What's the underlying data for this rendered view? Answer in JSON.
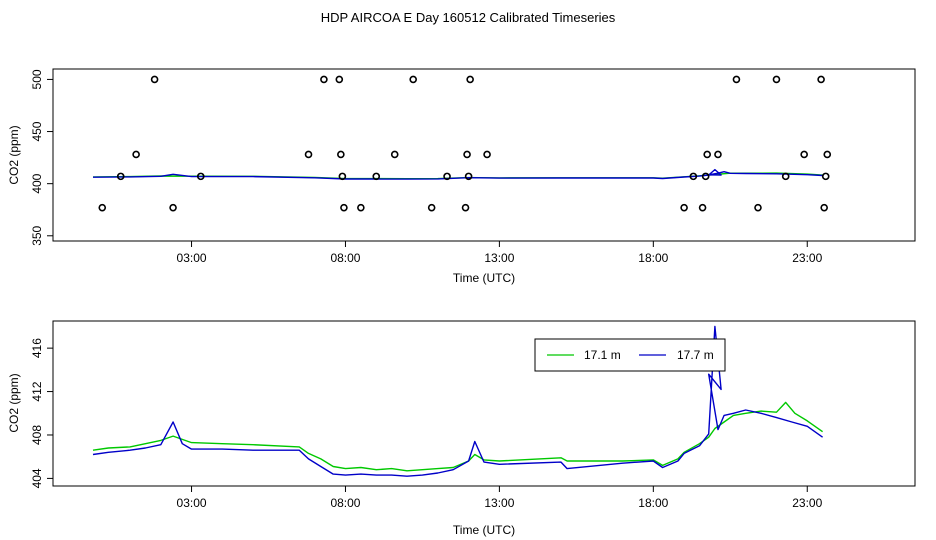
{
  "title": "HDP AIRCOA E  Day 160512  Calibrated Timeseries",
  "colors": {
    "series_17_1": "#00c800",
    "series_17_7": "#0000c8",
    "points": "#000000",
    "axis": "#000000"
  },
  "chart_data": [
    {
      "type": "scatter",
      "xlabel": "Time (UTC)",
      "ylabel": "CO2 (ppm)",
      "xlim": [
        -1.5,
        26.5
      ],
      "ylim": [
        345,
        510
      ],
      "xticks": [
        3,
        8,
        13,
        18,
        23
      ],
      "xtick_labels": [
        "03:00",
        "08:00",
        "13:00",
        "18:00",
        "23:00"
      ],
      "yticks": [
        350,
        400,
        450,
        500
      ],
      "ytick_labels": [
        "350",
        "400",
        "450",
        "500"
      ],
      "grid": false,
      "points_x": [
        0.1,
        0.7,
        1.2,
        1.8,
        2.4,
        3.3,
        6.8,
        7.3,
        7.8,
        7.85,
        7.9,
        7.95,
        8.5,
        9.0,
        9.6,
        10.2,
        10.8,
        11.3,
        11.9,
        11.95,
        12.0,
        12.05,
        12.6,
        19.0,
        19.3,
        19.6,
        19.7,
        19.75,
        20.1,
        20.7,
        21.4,
        22.0,
        22.3,
        22.9,
        23.45,
        23.55,
        23.6,
        23.65
      ],
      "points_y": [
        377,
        407,
        428,
        500,
        377,
        407,
        428,
        500,
        500,
        428,
        407,
        377,
        377,
        407,
        428,
        500,
        377,
        407,
        377,
        428,
        407,
        500,
        428,
        377,
        407,
        377,
        407,
        428,
        428,
        500,
        377,
        500,
        407,
        428,
        500,
        377,
        407,
        428
      ],
      "series": [
        {
          "x": [
            -0.2,
            1.0,
            2.0,
            3.0,
            5.0,
            7.0,
            8.0,
            9.0,
            10.0,
            11.0,
            12.0,
            13.0,
            15.0,
            18.0,
            18.3,
            19.0,
            19.5,
            20.0,
            20.5,
            21.0,
            22.0,
            23.0,
            23.5
          ],
          "y": [
            406.5,
            406.8,
            407.4,
            407.2,
            407.1,
            405.9,
            404.9,
            404.9,
            404.8,
            404.9,
            405.8,
            405.5,
            405.6,
            405.6,
            405.2,
            406.6,
            407.5,
            408.8,
            410.0,
            410.0,
            410.1,
            409.2,
            408.2
          ]
        },
        {
          "x": [
            -0.2,
            1.0,
            2.0,
            2.4,
            3.0,
            5.0,
            7.0,
            8.0,
            9.0,
            10.0,
            11.0,
            12.0,
            13.0,
            15.0,
            18.0,
            18.3,
            19.0,
            19.5,
            19.8,
            20.0,
            20.2,
            19.8,
            20.1,
            20.3,
            20.5,
            21.0,
            22.0,
            23.0,
            23.5
          ],
          "y": [
            406.2,
            406.5,
            407.1,
            409.0,
            406.8,
            406.8,
            405.6,
            404.5,
            404.5,
            404.4,
            404.6,
            405.7,
            405.3,
            405.4,
            405.4,
            405.0,
            406.4,
            407.3,
            408.3,
            413.5,
            408.3,
            408.5,
            410.0,
            411.5,
            409.9,
            409.8,
            409.5,
            408.6,
            407.8
          ]
        }
      ]
    },
    {
      "type": "line",
      "xlabel": "Time (UTC)",
      "ylabel": "CO2 (ppm)",
      "xlim": [
        -1.5,
        26.5
      ],
      "ylim": [
        403.3,
        418.5
      ],
      "xticks": [
        3,
        8,
        13,
        18,
        23
      ],
      "xtick_labels": [
        "03:00",
        "08:00",
        "13:00",
        "18:00",
        "23:00"
      ],
      "yticks": [
        404,
        408,
        412,
        416
      ],
      "ytick_labels": [
        "404",
        "408",
        "412",
        "416"
      ],
      "grid": false,
      "legend": "top-right",
      "series": [
        {
          "name": "17.1 m",
          "x": [
            -0.2,
            0.3,
            1.0,
            1.5,
            2.0,
            2.4,
            3.0,
            4.0,
            5.0,
            6.5,
            6.8,
            7.2,
            7.6,
            8.0,
            8.5,
            9.0,
            9.5,
            10.0,
            10.5,
            11.0,
            11.5,
            12.0,
            12.2,
            12.5,
            13.0,
            15.0,
            15.2,
            17.0,
            18.0,
            18.3,
            18.8,
            19.0,
            19.5,
            19.8,
            20.0,
            20.3,
            20.6,
            21.0,
            21.5,
            22.0,
            22.3,
            22.6,
            23.0,
            23.5
          ],
          "y": [
            406.6,
            406.8,
            406.9,
            407.2,
            407.5,
            407.9,
            407.3,
            407.2,
            407.1,
            406.9,
            406.3,
            405.8,
            405.1,
            404.9,
            405.0,
            404.8,
            404.9,
            404.7,
            404.8,
            404.9,
            405.0,
            405.6,
            406.2,
            405.7,
            405.6,
            405.9,
            405.6,
            405.6,
            405.7,
            405.2,
            405.8,
            406.4,
            407.2,
            407.8,
            408.6,
            409.2,
            409.8,
            410.0,
            410.2,
            410.1,
            411.0,
            410.0,
            409.3,
            408.3
          ]
        },
        {
          "name": "17.7 m",
          "x": [
            -0.2,
            0.3,
            1.0,
            1.5,
            2.0,
            2.4,
            2.7,
            3.0,
            4.0,
            5.0,
            6.5,
            6.8,
            7.2,
            7.6,
            8.0,
            8.5,
            9.0,
            9.5,
            10.0,
            10.5,
            11.0,
            11.5,
            12.0,
            12.2,
            12.5,
            13.0,
            15.0,
            15.2,
            17.0,
            18.0,
            18.3,
            18.8,
            19.0,
            19.5,
            19.8,
            20.0,
            20.2,
            19.8,
            20.1,
            20.3,
            20.6,
            21.0,
            21.5,
            22.0,
            22.5,
            23.0,
            23.5
          ],
          "y": [
            406.2,
            406.4,
            406.6,
            406.8,
            407.1,
            409.2,
            407.2,
            406.7,
            406.7,
            406.6,
            406.6,
            405.8,
            405.1,
            404.4,
            404.3,
            404.4,
            404.3,
            404.3,
            404.2,
            404.3,
            404.5,
            404.8,
            405.6,
            407.4,
            405.5,
            405.3,
            405.5,
            404.9,
            405.4,
            405.6,
            405.0,
            405.6,
            406.3,
            407.0,
            408.1,
            418.0,
            412.2,
            413.6,
            408.5,
            409.8,
            410.0,
            410.3,
            410.0,
            409.6,
            409.2,
            408.8,
            407.8
          ]
        }
      ]
    }
  ]
}
